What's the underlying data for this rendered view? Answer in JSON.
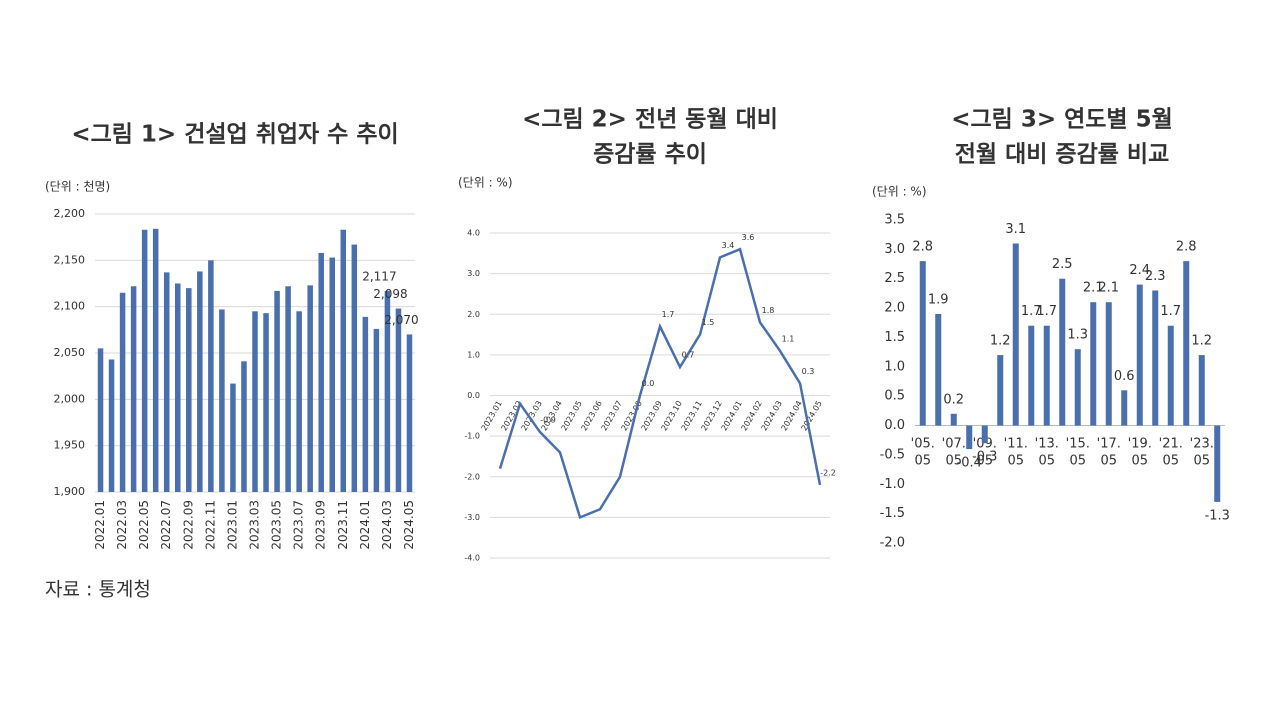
{
  "chart_data": [
    {
      "type": "bar",
      "title": [
        "<그림 1> 건설업 취업자 수 추이"
      ],
      "unit": "(단위 : 천명)",
      "color": "#4a6fae",
      "grid": true,
      "categories": [
        "2022.01",
        null,
        "2022.03",
        null,
        "2022.05",
        null,
        "2022.07",
        null,
        "2022.09",
        null,
        "2022.11",
        null,
        "2023.01",
        null,
        "2023.03",
        null,
        "2023.05",
        null,
        "2023.07",
        null,
        "2023.09",
        null,
        "2023.11",
        null,
        "2024.01",
        null,
        "2024.03",
        null,
        "2024.05"
      ],
      "values": [
        2055,
        2043,
        2115,
        2122,
        2183,
        2184,
        2137,
        2125,
        2120,
        2138,
        2150,
        2097,
        2017,
        2041,
        2095,
        2093,
        2117,
        2122,
        2095,
        2123,
        2158,
        2153,
        2183,
        2167,
        2089,
        2076,
        2117,
        2098,
        2070
      ],
      "value_labels": [
        null,
        null,
        null,
        null,
        null,
        null,
        null,
        null,
        null,
        null,
        null,
        null,
        null,
        null,
        null,
        null,
        null,
        null,
        null,
        null,
        null,
        null,
        null,
        null,
        null,
        null,
        "2,117",
        "2,098",
        "2,070"
      ],
      "ylim": [
        1900,
        2200
      ],
      "yticks": [
        {
          "value": 1900,
          "label": "1,900"
        },
        {
          "value": 1950,
          "label": "1,950"
        },
        {
          "value": 2000,
          "label": "2,000"
        },
        {
          "value": 2050,
          "label": "2,050"
        },
        {
          "value": 2100,
          "label": "2,100"
        },
        {
          "value": 2150,
          "label": "2,150"
        },
        {
          "value": 2200,
          "label": "2,200"
        }
      ]
    },
    {
      "type": "line",
      "title": [
        "<그림 2> 전년 동월 대비",
        "증감률 추이"
      ],
      "unit": "(단위 : %)",
      "color": "#4a6fae",
      "grid": true,
      "categories": [
        "2023.01",
        "2023.02",
        "2023.03",
        "2023.04",
        "2023.05",
        "2023.06",
        "2023.07",
        "2023.08",
        "2023.09",
        "2023.10",
        "2023.11",
        "2023.12",
        "2024.01",
        "2024.02",
        "2024.03",
        "2024.04",
        "2024.05"
      ],
      "values": [
        -1.8,
        -0.2,
        -0.9,
        -1.4,
        -3.0,
        -2.8,
        -2.0,
        0.0,
        1.7,
        0.7,
        1.5,
        3.4,
        3.6,
        1.8,
        1.1,
        0.3,
        -2.2
      ],
      "value_labels": [
        null,
        null,
        "-0.9",
        null,
        null,
        null,
        null,
        "0.0",
        "1.7",
        "0.7",
        "1.5",
        "3.4",
        "3.6",
        "1.8",
        "1.1",
        "0.3",
        "-2.2"
      ],
      "ylim": [
        -4,
        4
      ],
      "yticks": [
        {
          "value": -4,
          "label": "-4.0"
        },
        {
          "value": -3,
          "label": "-3.0"
        },
        {
          "value": -2,
          "label": "-2.0"
        },
        {
          "value": -1,
          "label": "-1.0"
        },
        {
          "value": 0,
          "label": "0.0"
        },
        {
          "value": 1,
          "label": "1.0"
        },
        {
          "value": 2,
          "label": "2.0"
        },
        {
          "value": 3,
          "label": "3.0"
        },
        {
          "value": 4,
          "label": "4.0"
        }
      ]
    },
    {
      "type": "bar",
      "title": [
        "<그림 3> 연도별 5월",
        "전월 대비 증감률 비교"
      ],
      "unit": "(단위 : %)",
      "color": "#4a6fae",
      "grid": false,
      "categories": [
        "'05.05",
        null,
        "'07.05",
        null,
        "'09.05",
        null,
        "'11.05",
        null,
        "'13.05",
        null,
        "'15.05",
        null,
        "'17.05",
        null,
        "'19.05",
        null,
        "'21.05",
        null,
        "'23.05",
        null
      ],
      "values": [
        2.8,
        1.9,
        0.2,
        -0.4,
        -0.3,
        1.2,
        3.1,
        1.7,
        1.7,
        2.5,
        1.3,
        2.1,
        2.1,
        0.6,
        2.4,
        2.3,
        1.7,
        2.8,
        1.2,
        -1.3
      ],
      "ylim": [
        -2,
        3.5
      ],
      "yticks": [
        {
          "value": -2,
          "label": "-2.0"
        },
        -1.5,
        {
          "value": -1,
          "label": "-1.0"
        },
        -0.5,
        {
          "value": 0,
          "label": "0.0"
        },
        0.5,
        {
          "value": 1,
          "label": "1.0"
        },
        1.5,
        {
          "value": 2,
          "label": "2.0"
        },
        2.5,
        {
          "value": 3,
          "label": "3.0"
        },
        3.5
      ]
    }
  ],
  "source": "자료 : 통계청"
}
